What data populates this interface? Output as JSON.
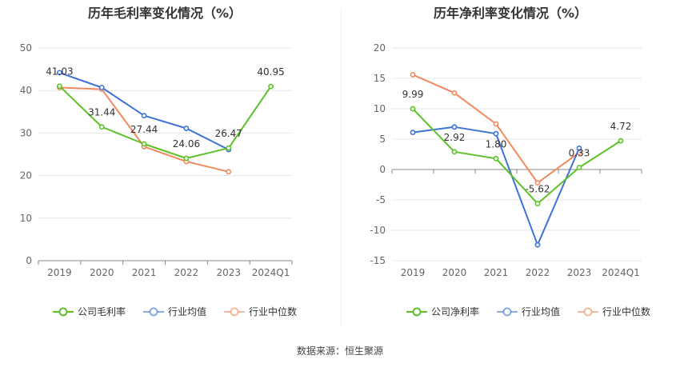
{
  "source_label": "数据来源：恒生聚源",
  "charts": [
    {
      "type": "line",
      "title": "历年毛利率变化情况（%）",
      "categories": [
        "2019",
        "2020",
        "2021",
        "2022",
        "2023",
        "2024Q1"
      ],
      "yticks": [
        0,
        10,
        20,
        30,
        40,
        50
      ],
      "ylim": [
        0,
        50
      ],
      "grid": true,
      "legend_position": "bottom-center",
      "series": [
        {
          "name": "公司毛利率",
          "color": "#5cc127",
          "labeled": true,
          "values": [
            41.03,
            31.44,
            27.44,
            24.06,
            26.47,
            40.95
          ]
        },
        {
          "name": "行业均值",
          "color": "#3e72d8",
          "labeled": false,
          "values": [
            44.2,
            40.7,
            34.1,
            31.1,
            26.1,
            null
          ]
        },
        {
          "name": "行业中位数",
          "color": "#f28a5f",
          "labeled": false,
          "values": [
            40.7,
            40.3,
            26.8,
            23.3,
            20.9,
            null
          ]
        }
      ]
    },
    {
      "type": "line",
      "title": "历年净利率变化情况（%）",
      "categories": [
        "2019",
        "2020",
        "2021",
        "2022",
        "2023",
        "2024Q1"
      ],
      "yticks": [
        -15,
        -10,
        -5,
        0,
        5,
        10,
        15,
        20
      ],
      "ylim": [
        -15,
        20
      ],
      "grid": true,
      "legend_position": "bottom-center",
      "series": [
        {
          "name": "公司净利率",
          "color": "#5cc127",
          "labeled": true,
          "values": [
            9.99,
            2.92,
            1.8,
            -5.62,
            0.33,
            4.72
          ]
        },
        {
          "name": "行业均值",
          "color": "#3e72d8",
          "labeled": false,
          "values": [
            6.1,
            7.0,
            5.9,
            -12.4,
            3.5,
            null
          ]
        },
        {
          "name": "行业中位数",
          "color": "#f28a5f",
          "labeled": false,
          "values": [
            15.6,
            12.6,
            7.5,
            -2.2,
            2.8,
            null
          ]
        }
      ]
    }
  ]
}
